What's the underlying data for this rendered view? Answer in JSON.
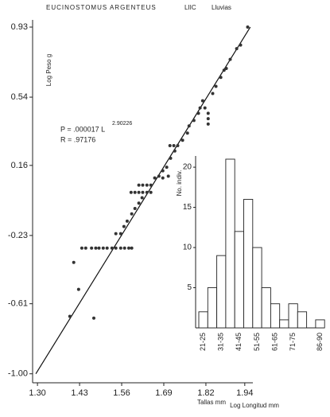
{
  "chart_data": [
    {
      "type": "scatter",
      "title": "EUCINOSTOMUS ARGENTEUS",
      "header_labels": [
        "LIIC",
        "Lluvias"
      ],
      "xlabel": "Log Longitud mm",
      "ylabel": "Log Peso g",
      "equation": "P = .000017 L",
      "exponent": "2.90226",
      "r_label": "R = .97176",
      "color": "#333333",
      "xlim": [
        1.285,
        1.965
      ],
      "ylim": [
        -1.05,
        0.97
      ],
      "xticks": [
        {
          "value": 1.3,
          "label": "1.30"
        },
        1.43,
        1.56,
        1.69,
        1.82,
        1.94
      ],
      "yticks": [
        0.93,
        0.54,
        0.16,
        -0.23,
        -0.61,
        {
          "value": -1.0,
          "label": "-1.00"
        }
      ],
      "x": [
        1.4,
        1.427,
        1.412,
        1.474,
        1.437,
        1.449,
        1.467,
        1.48,
        1.49,
        1.503,
        1.515,
        1.53,
        1.542,
        1.557,
        1.569,
        1.582,
        1.591,
        1.542,
        1.557,
        1.567,
        1.577,
        1.591,
        1.601,
        1.613,
        1.623,
        1.589,
        1.601,
        1.613,
        1.625,
        1.638,
        1.65,
        1.613,
        1.625,
        1.638,
        1.65,
        1.662,
        1.675,
        1.687,
        1.699,
        1.687,
        1.704,
        1.711,
        1.724,
        1.709,
        1.721,
        1.733,
        1.748,
        1.763,
        1.768,
        1.783,
        1.797,
        1.81,
        1.802,
        1.817,
        1.827,
        1.827,
        1.827,
        1.841,
        1.851,
        1.866,
        1.876,
        1.883,
        1.895,
        1.915,
        1.927,
        1.949
      ],
      "y": [
        -0.68,
        -0.53,
        -0.38,
        -0.69,
        -0.3,
        -0.3,
        -0.3,
        -0.3,
        -0.3,
        -0.3,
        -0.3,
        -0.3,
        -0.3,
        -0.3,
        -0.3,
        -0.3,
        -0.3,
        -0.22,
        -0.22,
        -0.18,
        -0.15,
        -0.11,
        -0.08,
        -0.05,
        -0.02,
        0.01,
        0.01,
        0.01,
        0.01,
        0.01,
        0.01,
        0.05,
        0.05,
        0.05,
        0.05,
        0.09,
        0.1,
        0.13,
        0.15,
        0.09,
        0.1,
        0.2,
        0.24,
        0.27,
        0.27,
        0.27,
        0.3,
        0.34,
        0.38,
        0.41,
        0.45,
        0.52,
        0.48,
        0.48,
        0.45,
        0.42,
        0.39,
        0.56,
        0.6,
        0.65,
        0.69,
        0.7,
        0.75,
        0.81,
        0.83,
        0.93
      ],
      "fit_line": {
        "x": [
          1.295,
          1.957
        ],
        "y": [
          -1.0,
          0.93
        ]
      }
    },
    {
      "type": "bar",
      "xlabel": "Tallas mm",
      "ylabel": "No. indiv.",
      "categories": [
        "21-25",
        null,
        "31-35",
        null,
        "41-45",
        null,
        "51-55",
        null,
        "61-65",
        null,
        "71-75",
        null,
        null,
        "86-90"
      ],
      "values": [
        2,
        5,
        9,
        21,
        12,
        16,
        10,
        5,
        3,
        1,
        3,
        2,
        0,
        1
      ],
      "color": "#ffffff",
      "ylim": [
        0,
        21
      ],
      "yticks": [
        5,
        10,
        15,
        20
      ]
    }
  ]
}
